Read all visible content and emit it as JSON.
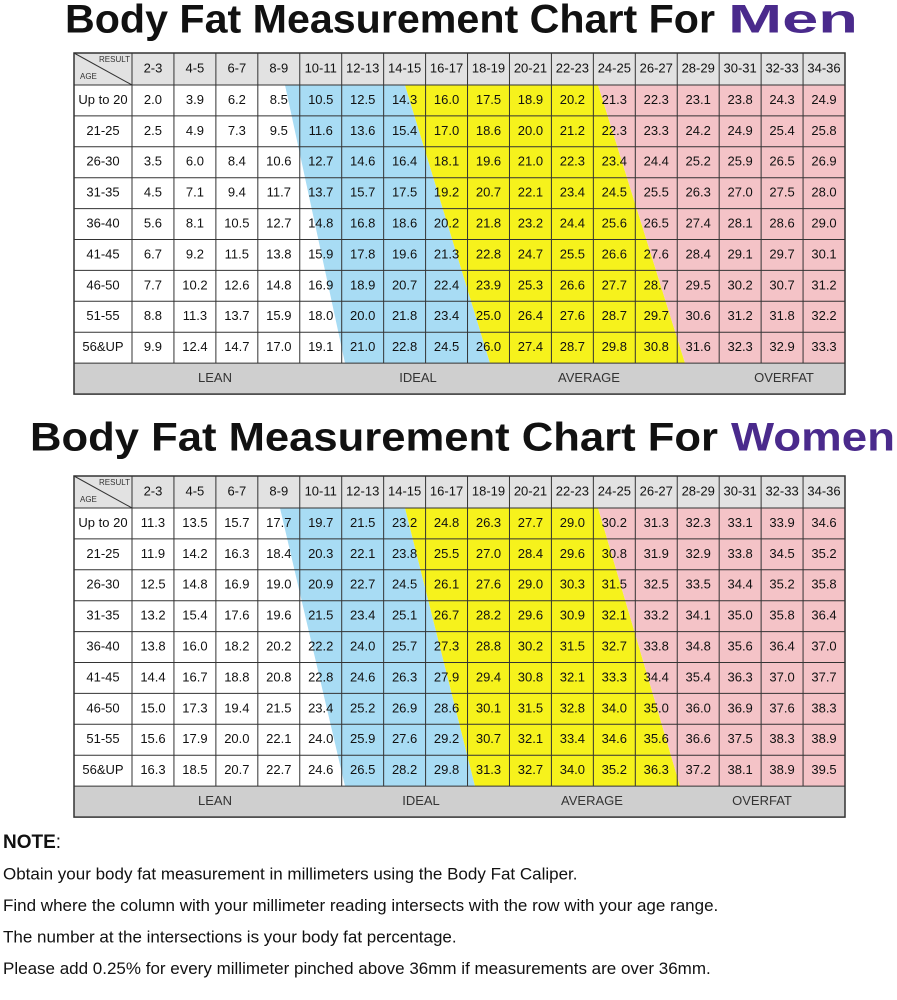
{
  "men": {
    "title_prefix": "Body Fat Measurement Chart For",
    "title_emph": "Men",
    "header_result": "RESULT",
    "header_age": "AGE",
    "columns": [
      "2-3",
      "4-5",
      "6-7",
      "8-9",
      "10-11",
      "12-13",
      "14-15",
      "16-17",
      "18-19",
      "20-21",
      "22-23",
      "24-25",
      "26-27",
      "28-29",
      "30-31",
      "32-33",
      "34-36"
    ],
    "rows": [
      {
        "age": "Up to 20",
        "values": [
          "2.0",
          "3.9",
          "6.2",
          "8.5",
          "10.5",
          "12.5",
          "14.3",
          "16.0",
          "17.5",
          "18.9",
          "20.2",
          "21.3",
          "22.3",
          "23.1",
          "23.8",
          "24.3",
          "24.9"
        ]
      },
      {
        "age": "21-25",
        "values": [
          "2.5",
          "4.9",
          "7.3",
          "9.5",
          "11.6",
          "13.6",
          "15.4",
          "17.0",
          "18.6",
          "20.0",
          "21.2",
          "22.3",
          "23.3",
          "24.2",
          "24.9",
          "25.4",
          "25.8"
        ]
      },
      {
        "age": "26-30",
        "values": [
          "3.5",
          "6.0",
          "8.4",
          "10.6",
          "12.7",
          "14.6",
          "16.4",
          "18.1",
          "19.6",
          "21.0",
          "22.3",
          "23.4",
          "24.4",
          "25.2",
          "25.9",
          "26.5",
          "26.9"
        ]
      },
      {
        "age": "31-35",
        "values": [
          "4.5",
          "7.1",
          "9.4",
          "11.7",
          "13.7",
          "15.7",
          "17.5",
          "19.2",
          "20.7",
          "22.1",
          "23.4",
          "24.5",
          "25.5",
          "26.3",
          "27.0",
          "27.5",
          "28.0"
        ]
      },
      {
        "age": "36-40",
        "values": [
          "5.6",
          "8.1",
          "10.5",
          "12.7",
          "14.8",
          "16.8",
          "18.6",
          "20.2",
          "21.8",
          "23.2",
          "24.4",
          "25.6",
          "26.5",
          "27.4",
          "28.1",
          "28.6",
          "29.0"
        ]
      },
      {
        "age": "41-45",
        "values": [
          "6.7",
          "9.2",
          "11.5",
          "13.8",
          "15.9",
          "17.8",
          "19.6",
          "21.3",
          "22.8",
          "24.7",
          "25.5",
          "26.6",
          "27.6",
          "28.4",
          "29.1",
          "29.7",
          "30.1"
        ]
      },
      {
        "age": "46-50",
        "values": [
          "7.7",
          "10.2",
          "12.6",
          "14.8",
          "16.9",
          "18.9",
          "20.7",
          "22.4",
          "23.9",
          "25.3",
          "26.6",
          "27.7",
          "28.7",
          "29.5",
          "30.2",
          "30.7",
          "31.2"
        ]
      },
      {
        "age": "51-55",
        "values": [
          "8.8",
          "11.3",
          "13.7",
          "15.9",
          "18.0",
          "20.0",
          "21.8",
          "23.4",
          "25.0",
          "26.4",
          "27.6",
          "28.7",
          "29.7",
          "30.6",
          "31.2",
          "31.8",
          "32.2"
        ]
      },
      {
        "age": "56&UP",
        "values": [
          "9.9",
          "12.4",
          "14.7",
          "17.0",
          "19.1",
          "21.0",
          "22.8",
          "24.5",
          "26.0",
          "27.4",
          "28.7",
          "29.8",
          "30.8",
          "31.6",
          "32.3",
          "32.9",
          "33.3"
        ]
      }
    ],
    "footer": [
      "LEAN",
      "IDEAL",
      "AVERAGE",
      "OVERFAT"
    ]
  },
  "women": {
    "title_prefix": "Body Fat Measurement Chart For",
    "title_emph": "Women",
    "header_result": "RESULT",
    "header_age": "AGE",
    "columns": [
      "2-3",
      "4-5",
      "6-7",
      "8-9",
      "10-11",
      "12-13",
      "14-15",
      "16-17",
      "18-19",
      "20-21",
      "22-23",
      "24-25",
      "26-27",
      "28-29",
      "30-31",
      "32-33",
      "34-36"
    ],
    "rows": [
      {
        "age": "Up to 20",
        "values": [
          "11.3",
          "13.5",
          "15.7",
          "17.7",
          "19.7",
          "21.5",
          "23.2",
          "24.8",
          "26.3",
          "27.7",
          "29.0",
          "30.2",
          "31.3",
          "32.3",
          "33.1",
          "33.9",
          "34.6"
        ]
      },
      {
        "age": "21-25",
        "values": [
          "11.9",
          "14.2",
          "16.3",
          "18.4",
          "20.3",
          "22.1",
          "23.8",
          "25.5",
          "27.0",
          "28.4",
          "29.6",
          "30.8",
          "31.9",
          "32.9",
          "33.8",
          "34.5",
          "35.2"
        ]
      },
      {
        "age": "26-30",
        "values": [
          "12.5",
          "14.8",
          "16.9",
          "19.0",
          "20.9",
          "22.7",
          "24.5",
          "26.1",
          "27.6",
          "29.0",
          "30.3",
          "31.5",
          "32.5",
          "33.5",
          "34.4",
          "35.2",
          "35.8"
        ]
      },
      {
        "age": "31-35",
        "values": [
          "13.2",
          "15.4",
          "17.6",
          "19.6",
          "21.5",
          "23.4",
          "25.1",
          "26.7",
          "28.2",
          "29.6",
          "30.9",
          "32.1",
          "33.2",
          "34.1",
          "35.0",
          "35.8",
          "36.4"
        ]
      },
      {
        "age": "36-40",
        "values": [
          "13.8",
          "16.0",
          "18.2",
          "20.2",
          "22.2",
          "24.0",
          "25.7",
          "27.3",
          "28.8",
          "30.2",
          "31.5",
          "32.7",
          "33.8",
          "34.8",
          "35.6",
          "36.4",
          "37.0"
        ]
      },
      {
        "age": "41-45",
        "values": [
          "14.4",
          "16.7",
          "18.8",
          "20.8",
          "22.8",
          "24.6",
          "26.3",
          "27.9",
          "29.4",
          "30.8",
          "32.1",
          "33.3",
          "34.4",
          "35.4",
          "36.3",
          "37.0",
          "37.7"
        ]
      },
      {
        "age": "46-50",
        "values": [
          "15.0",
          "17.3",
          "19.4",
          "21.5",
          "23.4",
          "25.2",
          "26.9",
          "28.6",
          "30.1",
          "31.5",
          "32.8",
          "34.0",
          "35.0",
          "36.0",
          "36.9",
          "37.6",
          "38.3"
        ]
      },
      {
        "age": "51-55",
        "values": [
          "15.6",
          "17.9",
          "20.0",
          "22.1",
          "24.0",
          "25.9",
          "27.6",
          "29.2",
          "30.7",
          "32.1",
          "33.4",
          "34.6",
          "35.6",
          "36.6",
          "37.5",
          "38.3",
          "38.9"
        ]
      },
      {
        "age": "56&UP",
        "values": [
          "16.3",
          "18.5",
          "20.7",
          "22.7",
          "24.6",
          "26.5",
          "28.2",
          "29.8",
          "31.3",
          "32.7",
          "34.0",
          "35.2",
          "36.3",
          "37.2",
          "38.1",
          "38.9",
          "39.5"
        ]
      }
    ],
    "footer": [
      "LEAN",
      "IDEAL",
      "AVERAGE",
      "OVERFAT"
    ]
  },
  "note": {
    "heading": "NOTE",
    "colon": ":",
    "lines": [
      "Obtain your body fat measurement in millimeters using the Body Fat Caliper.",
      "Find where the column with your millimeter reading intersects with the row with your age range.",
      "The number at the intersections is your body fat percentage.",
      "Please add 0.25% for every millimeter pinched above 36mm if measurements are over 36mm."
    ]
  }
}
